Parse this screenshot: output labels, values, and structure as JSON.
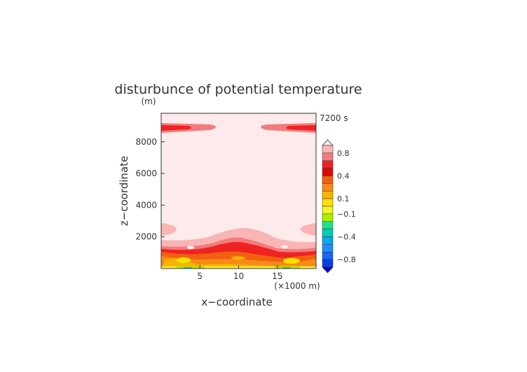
{
  "chart_data": {
    "type": "heatmap",
    "title": "disturbunce of potential temperature",
    "time_label": "7200 s",
    "y_unit": "(m)",
    "xlabel": "x−coordinate",
    "ylabel": "z−coordinate",
    "x_unit": "(×1000 m)",
    "xlim": [
      0,
      20
    ],
    "ylim": [
      0,
      9800
    ],
    "x_ticks": [
      {
        "v": 5,
        "label": "5"
      },
      {
        "v": 10,
        "label": "10"
      },
      {
        "v": 15,
        "label": "15"
      }
    ],
    "y_ticks": [
      {
        "v": 2000,
        "label": "2000"
      },
      {
        "v": 4000,
        "label": "4000"
      },
      {
        "v": 6000,
        "label": "6000"
      },
      {
        "v": 8000,
        "label": "8000"
      }
    ],
    "colorbar": {
      "levels": [
        {
          "lo": 1.0,
          "hi": null,
          "color": "#fdeaea",
          "arrow": true
        },
        {
          "lo": 0.8,
          "hi": 1.0,
          "color": "#f9b4b4"
        },
        {
          "lo": 0.6,
          "hi": 0.8,
          "color": "#f27b7b"
        },
        {
          "lo": 0.5,
          "hi": 0.6,
          "color": "#ee2222"
        },
        {
          "lo": 0.4,
          "hi": 0.5,
          "color": "#dd0a0a"
        },
        {
          "lo": 0.3,
          "hi": 0.4,
          "color": "#f06010"
        },
        {
          "lo": 0.2,
          "hi": 0.3,
          "color": "#f88a18"
        },
        {
          "lo": 0.1,
          "hi": 0.2,
          "color": "#f7b500"
        },
        {
          "lo": 0.0,
          "hi": 0.1,
          "color": "#fde000"
        },
        {
          "lo": -0.1,
          "hi": 0.0,
          "color": "#f2f528"
        },
        {
          "lo": -0.2,
          "hi": -0.1,
          "color": "#aaee00"
        },
        {
          "lo": -0.3,
          "hi": -0.2,
          "color": "#22dd88"
        },
        {
          "lo": -0.4,
          "hi": -0.3,
          "color": "#00ccbb"
        },
        {
          "lo": -0.5,
          "hi": -0.4,
          "color": "#00aaee"
        },
        {
          "lo": -0.6,
          "hi": -0.5,
          "color": "#1e8eff"
        },
        {
          "lo": -0.8,
          "hi": -0.6,
          "color": "#1a66f2"
        },
        {
          "lo": -1.0,
          "hi": -0.8,
          "color": "#0a3ee6"
        },
        {
          "lo": null,
          "hi": -1.0,
          "color": "#0000d8",
          "arrow": true
        }
      ],
      "tick_labels": [
        {
          "value": 0.8,
          "label": "0.8"
        },
        {
          "value": 0.4,
          "label": "0.4"
        },
        {
          "value": 0.1,
          "label": "0.1"
        },
        {
          "value": -0.1,
          "label": "−0.1"
        },
        {
          "value": -0.4,
          "label": "−0.4"
        },
        {
          "value": -0.8,
          "label": "−0.8"
        }
      ]
    }
  }
}
